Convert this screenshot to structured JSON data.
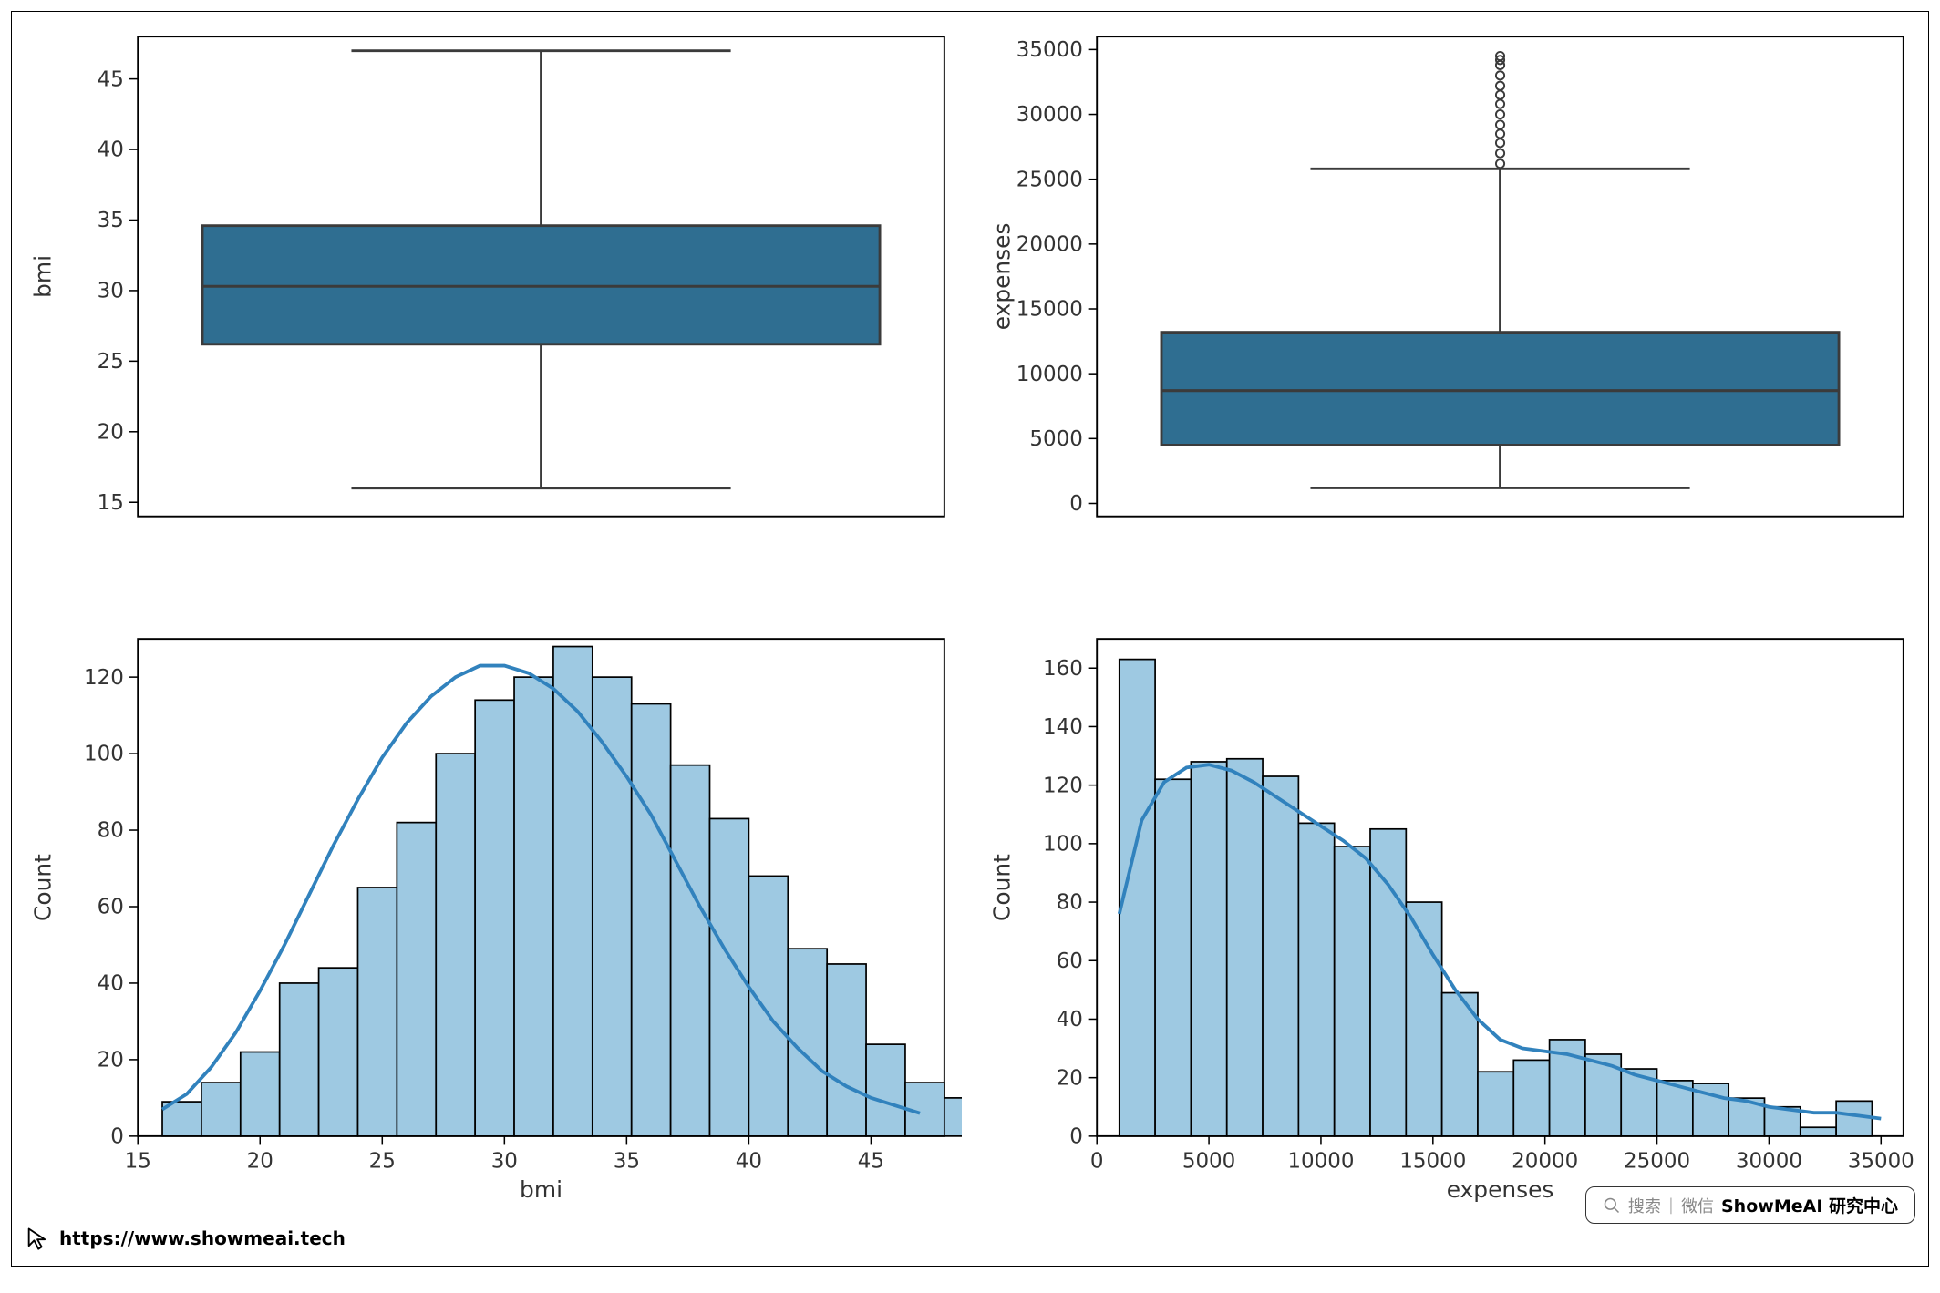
{
  "frame": {
    "border_color": "#000000",
    "background": "#ffffff"
  },
  "colors": {
    "box_fill": "#2f6e91",
    "box_edge": "#3b3b3b",
    "whisker": "#3b3b3b",
    "hist_fill": "#9ec9e2",
    "hist_edge": "#000000",
    "kde_line": "#3182bd",
    "axis": "#000000",
    "tick_text": "#333333"
  },
  "panel_bmi_box": {
    "type": "boxplot",
    "orientation": "horizontal",
    "ylabel": "bmi",
    "ylim": [
      14,
      48
    ],
    "yticks": [
      15,
      20,
      25,
      30,
      35,
      40,
      45
    ],
    "q1": 26.2,
    "median": 30.3,
    "q3": 34.6,
    "whisker_low": 16.0,
    "whisker_high": 47.0,
    "outliers": [],
    "box_xspan": [
      0.08,
      0.92
    ]
  },
  "panel_exp_box": {
    "type": "boxplot",
    "orientation": "horizontal",
    "ylabel": "expenses",
    "ylim": [
      -1000,
      36000
    ],
    "yticks": [
      0,
      5000,
      10000,
      15000,
      20000,
      25000,
      30000,
      35000
    ],
    "q1": 4500,
    "median": 8700,
    "q3": 13200,
    "whisker_low": 1200,
    "whisker_high": 25800,
    "outliers": [
      26200,
      27000,
      27800,
      28500,
      29200,
      30000,
      30800,
      31500,
      32200,
      33000,
      33800,
      34200,
      34500
    ],
    "box_xspan": [
      0.08,
      0.92
    ]
  },
  "panel_bmi_hist": {
    "type": "histogram",
    "xlabel": "bmi",
    "ylabel": "Count",
    "xlim": [
      15,
      48
    ],
    "ylim": [
      0,
      130
    ],
    "xticks": [
      15,
      20,
      25,
      30,
      35,
      40,
      45
    ],
    "yticks": [
      0,
      20,
      40,
      60,
      80,
      100,
      120
    ],
    "bin_start": 16,
    "bin_width": 1.6,
    "counts": [
      9,
      14,
      22,
      40,
      44,
      65,
      82,
      100,
      114,
      120,
      128,
      120,
      113,
      97,
      83,
      68,
      49,
      45,
      24,
      14,
      10
    ],
    "kde": [
      [
        16,
        7
      ],
      [
        17,
        11
      ],
      [
        18,
        18
      ],
      [
        19,
        27
      ],
      [
        20,
        38
      ],
      [
        21,
        50
      ],
      [
        22,
        63
      ],
      [
        23,
        76
      ],
      [
        24,
        88
      ],
      [
        25,
        99
      ],
      [
        26,
        108
      ],
      [
        27,
        115
      ],
      [
        28,
        120
      ],
      [
        29,
        123
      ],
      [
        30,
        123
      ],
      [
        31,
        121
      ],
      [
        32,
        117
      ],
      [
        33,
        111
      ],
      [
        34,
        103
      ],
      [
        35,
        94
      ],
      [
        36,
        84
      ],
      [
        37,
        72
      ],
      [
        38,
        60
      ],
      [
        39,
        49
      ],
      [
        40,
        39
      ],
      [
        41,
        30
      ],
      [
        42,
        23
      ],
      [
        43,
        17
      ],
      [
        44,
        13
      ],
      [
        45,
        10
      ],
      [
        46,
        8
      ],
      [
        47,
        6
      ]
    ]
  },
  "panel_exp_hist": {
    "type": "histogram",
    "xlabel": "expenses",
    "ylabel": "Count",
    "xlim": [
      0,
      36000
    ],
    "ylim": [
      0,
      170
    ],
    "xticks": [
      0,
      5000,
      10000,
      15000,
      20000,
      25000,
      30000,
      35000
    ],
    "yticks": [
      0,
      20,
      40,
      60,
      80,
      100,
      120,
      140,
      160
    ],
    "bin_start": 1000,
    "bin_width": 1600,
    "counts": [
      163,
      122,
      128,
      129,
      123,
      107,
      99,
      105,
      80,
      49,
      22,
      26,
      33,
      28,
      23,
      19,
      18,
      13,
      10,
      3,
      12
    ],
    "kde": [
      [
        1000,
        76
      ],
      [
        2000,
        108
      ],
      [
        3000,
        121
      ],
      [
        4000,
        126
      ],
      [
        5000,
        127
      ],
      [
        6000,
        125
      ],
      [
        7000,
        121
      ],
      [
        8000,
        116
      ],
      [
        9000,
        111
      ],
      [
        10000,
        106
      ],
      [
        11000,
        101
      ],
      [
        12000,
        95
      ],
      [
        13000,
        86
      ],
      [
        14000,
        75
      ],
      [
        15000,
        62
      ],
      [
        16000,
        50
      ],
      [
        17000,
        40
      ],
      [
        18000,
        33
      ],
      [
        19000,
        30
      ],
      [
        20000,
        29
      ],
      [
        21000,
        28
      ],
      [
        22000,
        26
      ],
      [
        23000,
        24
      ],
      [
        24000,
        21
      ],
      [
        25000,
        19
      ],
      [
        26000,
        17
      ],
      [
        27000,
        15
      ],
      [
        28000,
        13
      ],
      [
        29000,
        12
      ],
      [
        30000,
        10
      ],
      [
        31000,
        9
      ],
      [
        32000,
        8
      ],
      [
        33000,
        8
      ],
      [
        34000,
        7
      ],
      [
        35000,
        6
      ]
    ]
  },
  "footer": {
    "url": "https://www.showmeai.tech",
    "search_label": "搜索",
    "wechat_label": "微信",
    "brand": "ShowMeAI 研究中心"
  }
}
